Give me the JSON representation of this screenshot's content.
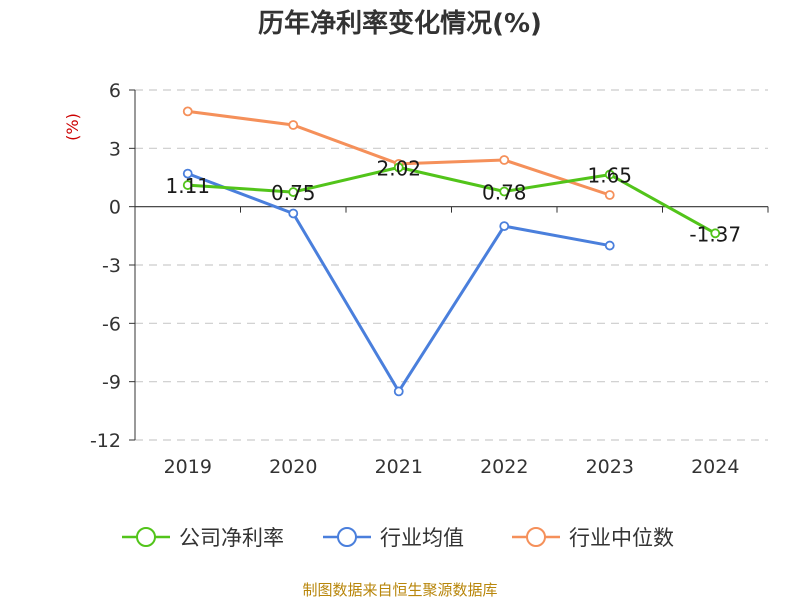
{
  "chart_data": {
    "type": "line",
    "title": "历年净利率变化情况(%)",
    "ylabel": "(%)",
    "categories": [
      "2019",
      "2020",
      "2021",
      "2022",
      "2023",
      "2024"
    ],
    "yticks": [
      6,
      3,
      0,
      -3,
      -6,
      -9,
      -12
    ],
    "ylim": [
      -12,
      6
    ],
    "grid": true,
    "legend_position": "bottom",
    "series": [
      {
        "name": "公司净利率",
        "color": "#52c41a",
        "values": [
          1.11,
          0.75,
          2.02,
          0.78,
          1.65,
          -1.37
        ],
        "labels": [
          "1.11",
          "0.75",
          "2.02",
          "0.78",
          "1.65",
          "-1.37"
        ]
      },
      {
        "name": "行业均值",
        "color": "#4a7fdc",
        "values": [
          1.7,
          -0.35,
          -9.5,
          -1.0,
          -2.0,
          null
        ]
      },
      {
        "name": "行业中位数",
        "color": "#f5905a",
        "values": [
          4.9,
          4.2,
          2.2,
          2.4,
          0.6,
          null
        ]
      }
    ]
  },
  "source": "制图数据来自恒生聚源数据库"
}
